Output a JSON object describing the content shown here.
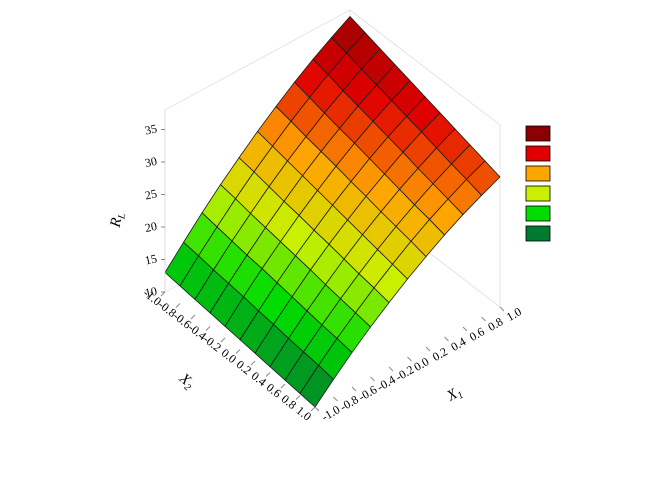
{
  "chart_data": {
    "type": "surface",
    "x_label": {
      "text": "X",
      "sub": "1"
    },
    "y_label": {
      "text": "X",
      "sub": "2"
    },
    "z_label": {
      "text": "R",
      "sub": "L"
    },
    "x": [
      -1,
      -0.8,
      -0.6,
      -0.4,
      -0.2,
      0,
      0.2,
      0.4,
      0.6,
      0.8,
      1
    ],
    "y": [
      -1,
      -0.8,
      -0.6,
      -0.4,
      -0.2,
      0,
      0.2,
      0.4,
      0.6,
      0.8,
      1
    ],
    "z": [
      [
        13.0,
        12.7,
        12.4,
        12.1,
        11.8,
        11.5,
        11.2,
        10.9,
        10.6,
        10.3,
        10.0
      ],
      [
        16.1,
        15.8,
        15.4,
        15.1,
        14.8,
        14.4,
        14.1,
        13.7,
        13.4,
        13.1,
        12.7
      ],
      [
        19.1,
        18.7,
        18.3,
        17.9,
        17.6,
        17.2,
        16.8,
        16.4,
        16.0,
        15.7,
        15.3
      ],
      [
        21.9,
        21.5,
        21.0,
        20.6,
        20.2,
        19.8,
        19.4,
        18.9,
        18.5,
        18.1,
        17.7
      ],
      [
        24.5,
        24.1,
        23.6,
        23.1,
        22.7,
        22.2,
        21.8,
        21.3,
        20.8,
        20.4,
        19.9
      ],
      [
        27.0,
        26.5,
        26.0,
        25.5,
        25.0,
        24.5,
        24.0,
        23.5,
        23.0,
        22.5,
        22.0
      ],
      [
        29.3,
        28.8,
        28.2,
        27.7,
        27.2,
        26.6,
        26.1,
        25.5,
        25.0,
        24.5,
        23.9
      ],
      [
        31.5,
        30.9,
        30.3,
        29.7,
        29.2,
        28.6,
        28.0,
        27.4,
        26.8,
        26.3,
        25.7
      ],
      [
        33.5,
        32.9,
        32.2,
        31.6,
        31.0,
        30.4,
        29.8,
        29.1,
        28.5,
        27.9,
        27.3
      ],
      [
        35.3,
        34.7,
        34.0,
        33.3,
        32.7,
        32.0,
        31.4,
        30.7,
        30.0,
        29.4,
        28.7
      ],
      [
        37.0,
        36.3,
        35.6,
        34.9,
        34.2,
        33.5,
        32.8,
        32.1,
        31.4,
        30.7,
        30.0
      ]
    ],
    "xlim": [
      -1,
      1
    ],
    "ylim": [
      -1,
      1
    ],
    "zlim": [
      10,
      38
    ],
    "xticks": [
      {
        "value": -1,
        "label": "-1.0"
      },
      -0.8,
      -0.6,
      -0.4,
      -0.2,
      {
        "value": 0,
        "label": "0.0"
      },
      0.2,
      0.4,
      0.6,
      0.8,
      {
        "value": 1,
        "label": "1.0"
      }
    ],
    "yticks": [
      {
        "value": -1,
        "label": "-1.0"
      },
      -0.8,
      -0.6,
      -0.4,
      -0.2,
      {
        "value": 0,
        "label": "0.0"
      },
      0.2,
      0.4,
      0.6,
      0.8,
      {
        "value": 1,
        "label": "1.0"
      }
    ],
    "zticks": [
      10,
      15,
      20,
      25,
      30,
      35
    ],
    "colormap": [
      "#007a30",
      "#00dc00",
      "#c8f000",
      "#ffa500",
      "#e00000",
      "#8b0000"
    ]
  }
}
